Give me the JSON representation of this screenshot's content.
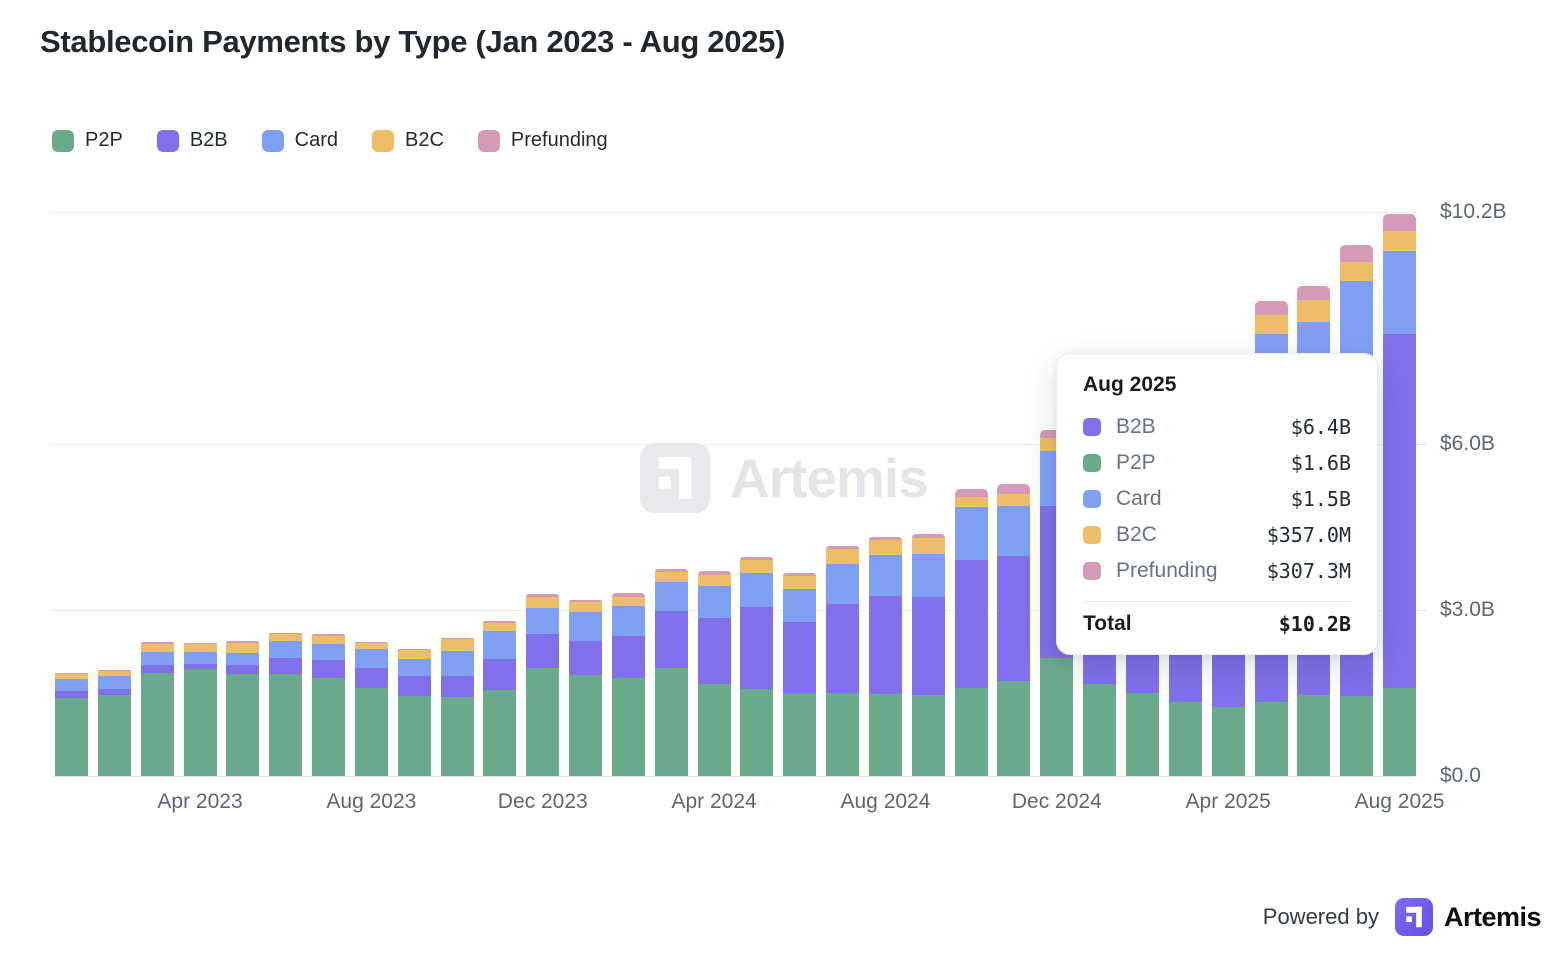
{
  "header": {
    "title": "Stablecoin Payments by Type (Jan 2023 - Aug 2025)"
  },
  "watermark": {
    "text": "Artemis"
  },
  "footer": {
    "powered_by": "Powered by",
    "brand": "Artemis"
  },
  "colors": {
    "p2p": "#6aab8e",
    "b2b": "#8170ea",
    "card": "#7fa0f2",
    "b2c": "#edbd68",
    "prefunding": "#d59ab8",
    "grid": "#ededf0",
    "axis_text": "#5c6676"
  },
  "chart_data": {
    "type": "bar",
    "stacked": true,
    "title": "Stablecoin Payments by Type (Jan 2023 - Aug 2025)",
    "unit": "USD billions",
    "legend_position": "top-left",
    "grid": "horizontal",
    "ylim": [
      0,
      10.2
    ],
    "yticks": [
      {
        "value": 10.2,
        "label": "$10.2B"
      },
      {
        "value": 6.0,
        "label": "$6.0B"
      },
      {
        "value": 3.0,
        "label": "$3.0B"
      },
      {
        "value": 0.0,
        "label": "$0.0"
      }
    ],
    "xticks": [
      {
        "index": 3,
        "label": "Apr 2023"
      },
      {
        "index": 7,
        "label": "Aug 2023"
      },
      {
        "index": 11,
        "label": "Dec 2023"
      },
      {
        "index": 15,
        "label": "Apr 2024"
      },
      {
        "index": 19,
        "label": "Aug 2024"
      },
      {
        "index": 23,
        "label": "Dec 2024"
      },
      {
        "index": 27,
        "label": "Apr 2025"
      },
      {
        "index": 31,
        "label": "Aug 2025"
      }
    ],
    "x": [
      "Jan 2023",
      "Feb 2023",
      "Mar 2023",
      "Apr 2023",
      "May 2023",
      "Jun 2023",
      "Jul 2023",
      "Aug 2023",
      "Sep 2023",
      "Oct 2023",
      "Nov 2023",
      "Dec 2023",
      "Jan 2024",
      "Feb 2024",
      "Mar 2024",
      "Apr 2024",
      "May 2024",
      "Jun 2024",
      "Jul 2024",
      "Aug 2024",
      "Sep 2024",
      "Oct 2024",
      "Nov 2024",
      "Dec 2024",
      "Jan 2025",
      "Feb 2025",
      "Mar 2025",
      "Apr 2025",
      "May 2025",
      "Jun 2025",
      "Jul 2025",
      "Aug 2025"
    ],
    "series": [
      {
        "name": "P2P",
        "color": "#6aab8e",
        "values": [
          1.41,
          1.46,
          1.87,
          1.93,
          1.84,
          1.84,
          1.78,
          1.59,
          1.45,
          1.43,
          1.56,
          1.95,
          1.83,
          1.77,
          1.95,
          1.67,
          1.58,
          1.51,
          1.51,
          1.48,
          1.46,
          1.59,
          1.72,
          2.13,
          1.66,
          1.5,
          1.33,
          1.24,
          1.34,
          1.47,
          1.45,
          1.6
        ]
      },
      {
        "name": "B2B",
        "color": "#8170ea",
        "values": [
          0.13,
          0.11,
          0.13,
          0.09,
          0.17,
          0.3,
          0.32,
          0.37,
          0.35,
          0.38,
          0.55,
          0.62,
          0.61,
          0.76,
          1.03,
          1.18,
          1.48,
          1.28,
          1.6,
          1.78,
          1.78,
          2.32,
          2.26,
          2.75,
          3.6,
          4.0,
          4.3,
          4.4,
          5.36,
          5.39,
          6.05,
          6.4
        ]
      },
      {
        "name": "Card",
        "color": "#7fa0f2",
        "values": [
          0.21,
          0.24,
          0.25,
          0.22,
          0.21,
          0.31,
          0.29,
          0.34,
          0.31,
          0.45,
          0.52,
          0.47,
          0.52,
          0.54,
          0.53,
          0.58,
          0.62,
          0.6,
          0.72,
          0.73,
          0.77,
          0.95,
          0.9,
          1.0,
          1.2,
          1.25,
          1.3,
          1.35,
          1.3,
          1.35,
          1.45,
          1.5
        ]
      },
      {
        "name": "B2C",
        "color": "#edbd68",
        "values": [
          0.09,
          0.09,
          0.14,
          0.15,
          0.19,
          0.12,
          0.15,
          0.11,
          0.17,
          0.21,
          0.14,
          0.2,
          0.18,
          0.16,
          0.18,
          0.2,
          0.22,
          0.22,
          0.28,
          0.28,
          0.3,
          0.18,
          0.22,
          0.23,
          0.25,
          0.25,
          0.27,
          0.28,
          0.33,
          0.39,
          0.35,
          0.36
        ]
      },
      {
        "name": "Prefunding",
        "color": "#d59ab8",
        "values": [
          0.02,
          0.02,
          0.03,
          0.02,
          0.03,
          0.02,
          0.02,
          0.02,
          0.02,
          0.03,
          0.03,
          0.06,
          0.04,
          0.08,
          0.06,
          0.07,
          0.06,
          0.06,
          0.05,
          0.06,
          0.06,
          0.16,
          0.18,
          0.15,
          0.2,
          0.2,
          0.2,
          0.23,
          0.26,
          0.26,
          0.31,
          0.31
        ]
      }
    ]
  },
  "tooltip": {
    "title": "Aug 2025",
    "rows": [
      {
        "label": "B2B",
        "value": "$6.4B",
        "color": "#8170ea"
      },
      {
        "label": "P2P",
        "value": "$1.6B",
        "color": "#6aab8e"
      },
      {
        "label": "Card",
        "value": "$1.5B",
        "color": "#7fa0f2"
      },
      {
        "label": "B2C",
        "value": "$357.0M",
        "color": "#edbd68"
      },
      {
        "label": "Prefunding",
        "value": "$307.3M",
        "color": "#d59ab8"
      }
    ],
    "total_label": "Total",
    "total_value": "$10.2B"
  }
}
